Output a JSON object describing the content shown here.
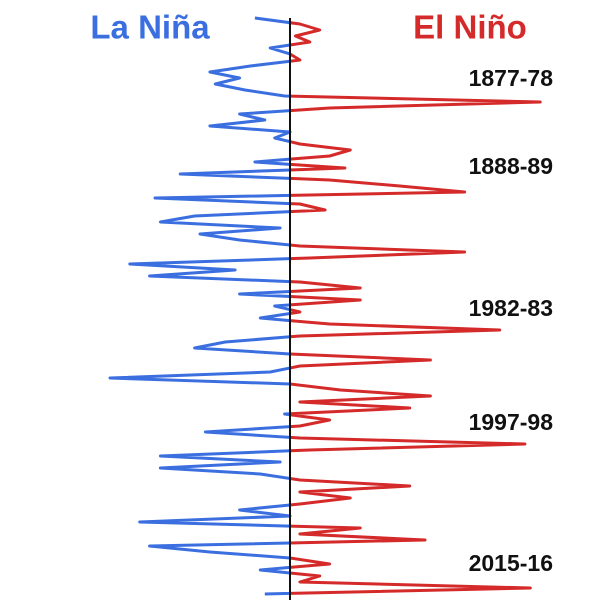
{
  "chart_data": {
    "type": "line",
    "negative_label": "La Niña",
    "positive_label": "El Niño",
    "negative_color": "#3b6fe0",
    "positive_color": "#d42a2a",
    "annotations": [
      "1877-78",
      "1888-89",
      "1982-83",
      "1997-98",
      "2015-16"
    ],
    "xlim": [
      -3.2,
      3.4
    ],
    "values": [
      -0.39,
      0.11,
      0.33,
      0.06,
      0.22,
      -0.22,
      0,
      0.11,
      -0.44,
      -0.89,
      -0.56,
      -0.83,
      -0.5,
      -0.06,
      2.78,
      0.44,
      -0.56,
      -0.28,
      -0.89,
      0,
      -0.17,
      0.11,
      0.67,
      0.44,
      -0.39,
      0.61,
      -1.22,
      0.44,
      1.22,
      1.94,
      -1.5,
      0.11,
      0.39,
      -1.06,
      -1.44,
      -0.11,
      -1,
      -0.56,
      0.11,
      1.94,
      0.22,
      -1.78,
      -0.61,
      -1.56,
      0.11,
      0.78,
      -0.56,
      0.78,
      -0.17,
      0.11,
      -0.33,
      0.44,
      2.33,
      0.11,
      -0.72,
      -1.06,
      0,
      1.56,
      0.11,
      -0.22,
      -2,
      0,
      0.56,
      1.56,
      0.11,
      1.33,
      -0.06,
      0.44,
      0.11,
      -0.94,
      0.11,
      2.61,
      0.22,
      -1.44,
      -0.11,
      -1.44,
      -0.33,
      0.11,
      1.33,
      0.11,
      0.67,
      0.11,
      -0.56,
      0,
      -1.67,
      0.78,
      0.11,
      1.5,
      -1.56,
      -0.89,
      0,
      0.44,
      -0.33,
      0.33,
      0.11,
      2.67,
      -0.28
    ]
  }
}
